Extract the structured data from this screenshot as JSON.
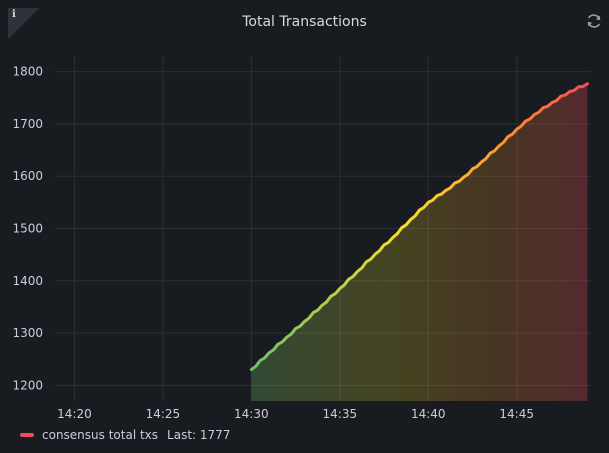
{
  "panel": {
    "title": "Total Transactions",
    "info_glyph": "i",
    "info_icon": "info-icon",
    "refresh_icon": "refresh-icon"
  },
  "legend": {
    "label": "consensus total txs",
    "last": "Last: 1777",
    "color": "#f2495c"
  },
  "chart_data": {
    "type": "line",
    "title": "Total Transactions",
    "xlabel": "",
    "ylabel": "",
    "x_ticks": [
      "14:20",
      "14:25",
      "14:30",
      "14:35",
      "14:40",
      "14:45"
    ],
    "y_ticks": [
      1200,
      1300,
      1400,
      1500,
      1600,
      1700,
      1800
    ],
    "xlim": [
      "14:18.9",
      "14:49.2"
    ],
    "ylim": [
      1170,
      1830
    ],
    "grid": true,
    "legend_position": "bottom-left",
    "fill": "gradient",
    "gradient_colors": [
      "#73bf69",
      "#fade2a",
      "#ff9830",
      "#f2495c"
    ],
    "series": [
      {
        "name": "consensus total txs",
        "x": [
          "14:30",
          "14:31",
          "14:32",
          "14:33",
          "14:34",
          "14:35",
          "14:36",
          "14:37",
          "14:38",
          "14:39",
          "14:40",
          "14:41",
          "14:42",
          "14:43",
          "14:44",
          "14:45",
          "14:46",
          "14:47",
          "14:48",
          "14:49"
        ],
        "values": [
          1230,
          1262,
          1292,
          1322,
          1353,
          1385,
          1418,
          1451,
          1483,
          1517,
          1550,
          1573,
          1598,
          1627,
          1658,
          1690,
          1718,
          1741,
          1762,
          1777
        ]
      }
    ]
  }
}
